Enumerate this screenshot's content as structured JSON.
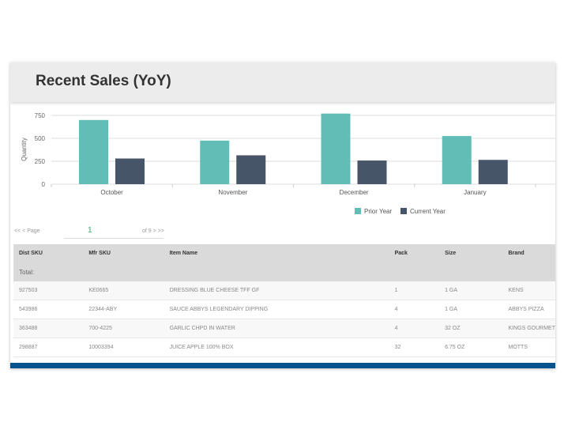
{
  "header": {
    "title": "Recent Sales (YoY)"
  },
  "chart_data": {
    "type": "bar",
    "categories": [
      "October",
      "November",
      "December",
      "January"
    ],
    "series": [
      {
        "name": "Prior Year",
        "color": "#62bdb7",
        "values": [
          700,
          475,
          770,
          525
        ]
      },
      {
        "name": "Current Year",
        "color": "#475569",
        "values": [
          280,
          315,
          258,
          265
        ]
      }
    ],
    "ylabel": "Quantity",
    "yticks": [
      0,
      250,
      500,
      750
    ],
    "ylim": [
      0,
      800
    ],
    "grid": true,
    "legend": "bottom-right"
  },
  "pager": {
    "first": "<<",
    "prev": "<",
    "page_label": "Page",
    "page_value": "1",
    "of_label": "of 9",
    "next": ">",
    "last": ">>"
  },
  "table": {
    "columns": [
      "Dist SKU",
      "Mfr SKU",
      "Item Name",
      "Pack",
      "Size",
      "Brand"
    ],
    "total_label": "Total:",
    "rows": [
      [
        "927503",
        "KE0665",
        "DRESSING BLUE CHEESE TFF GF",
        "1",
        "1 GA",
        "KENS"
      ],
      [
        "543986",
        "22344-ABY",
        "SAUCE ABBYS LEGENDARY DIPPING",
        "4",
        "1 GA",
        "ABBYS PIZZA"
      ],
      [
        "363488",
        "700-4225",
        "GARLIC CHPD IN WATER",
        "4",
        "32 OZ",
        "KINGS GOURMET"
      ],
      [
        "298887",
        "10003394",
        "JUICE APPLE 100% BOX",
        "32",
        "6.75 OZ",
        "MOTTS"
      ]
    ]
  }
}
